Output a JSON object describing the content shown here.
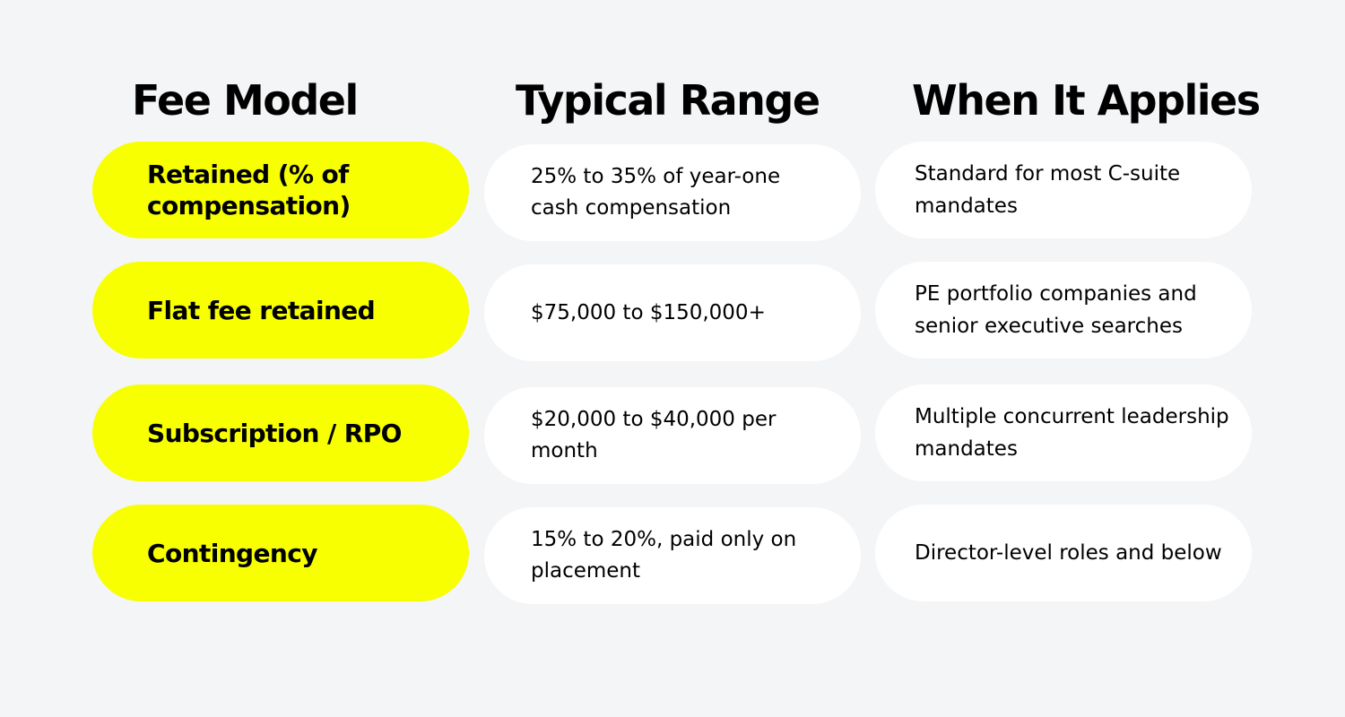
{
  "headers": {
    "fee_model": "Fee Model",
    "typical_range": "Typical Range",
    "when_it_applies": "When It Applies"
  },
  "rows": [
    {
      "fee_model": "Retained (% of compensation)",
      "typical_range": "25% to 35% of year-one cash compensation",
      "when_it_applies": "Standard for most C-suite mandates"
    },
    {
      "fee_model": "Flat fee retained",
      "typical_range": "$75,000 to $150,000+",
      "when_it_applies": "PE portfolio companies and senior executive searches"
    },
    {
      "fee_model": "Subscription / RPO",
      "typical_range": "$20,000 to $40,000 per month",
      "when_it_applies": "Multiple concurrent leadership mandates"
    },
    {
      "fee_model": "Contingency",
      "typical_range": "15% to 20%, paid only on placement",
      "when_it_applies": "Director-level roles and below"
    }
  ],
  "colors": {
    "background": "#f4f5f7",
    "label_pill": "#f7ff00",
    "cell_pill": "#ffffff",
    "text": "#000000"
  }
}
